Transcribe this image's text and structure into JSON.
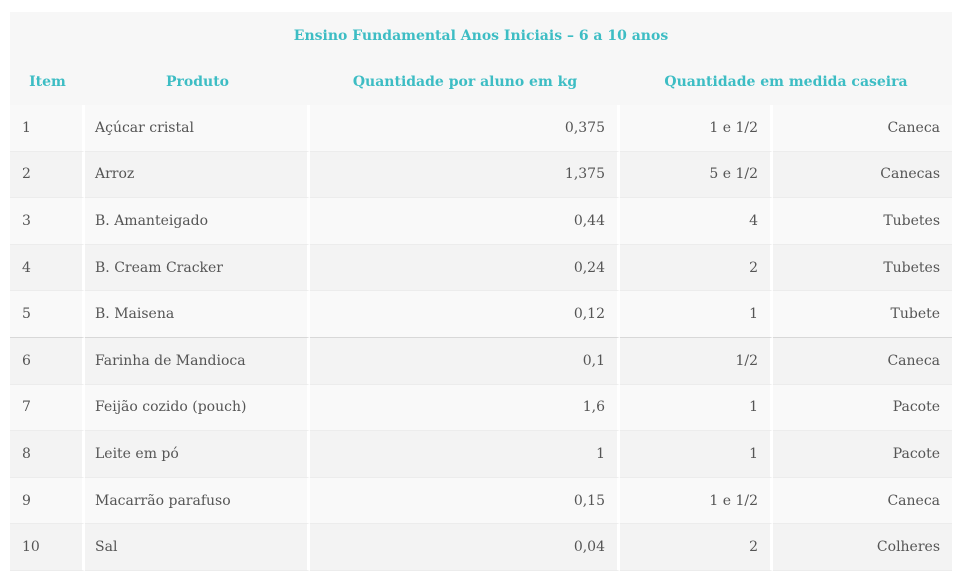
{
  "table": {
    "title": "Ensino Fundamental Anos Iniciais – 6 a 10 anos",
    "headers": {
      "item": "Item",
      "produto": "Produto",
      "quantidade_kg": "Quantidade por aluno em kg",
      "medida_caseira": "Quantidade em medida caseira"
    },
    "rows": [
      {
        "item": "1",
        "produto": "Açúcar cristal",
        "kg": "0,375",
        "medida": "1 e 1/2",
        "unidade": "Caneca"
      },
      {
        "item": "2",
        "produto": "Arroz",
        "kg": "1,375",
        "medida": "5 e 1/2",
        "unidade": "Canecas"
      },
      {
        "item": "3",
        "produto": "B. Amanteigado",
        "kg": "0,44",
        "medida": "4",
        "unidade": "Tubetes"
      },
      {
        "item": "4",
        "produto": "B. Cream Cracker",
        "kg": "0,24",
        "medida": "2",
        "unidade": "Tubetes"
      },
      {
        "item": "5",
        "produto": "B. Maisena",
        "kg": "0,12",
        "medida": "1",
        "unidade": "Tubete"
      },
      {
        "item": "6",
        "produto": "Farinha de Mandioca",
        "kg": "0,1",
        "medida": "1/2",
        "unidade": "Caneca"
      },
      {
        "item": "7",
        "produto": "Feijão cozido (pouch)",
        "kg": "1,6",
        "medida": "1",
        "unidade": "Pacote"
      },
      {
        "item": "8",
        "produto": "Leite em pó",
        "kg": "1",
        "medida": "1",
        "unidade": "Pacote"
      },
      {
        "item": "9",
        "produto": "Macarrão parafuso",
        "kg": "0,15",
        "medida": "1 e 1/2",
        "unidade": "Caneca"
      },
      {
        "item": "10",
        "produto": "Sal",
        "kg": "0,04",
        "medida": "2",
        "unidade": "Colheres"
      }
    ]
  }
}
